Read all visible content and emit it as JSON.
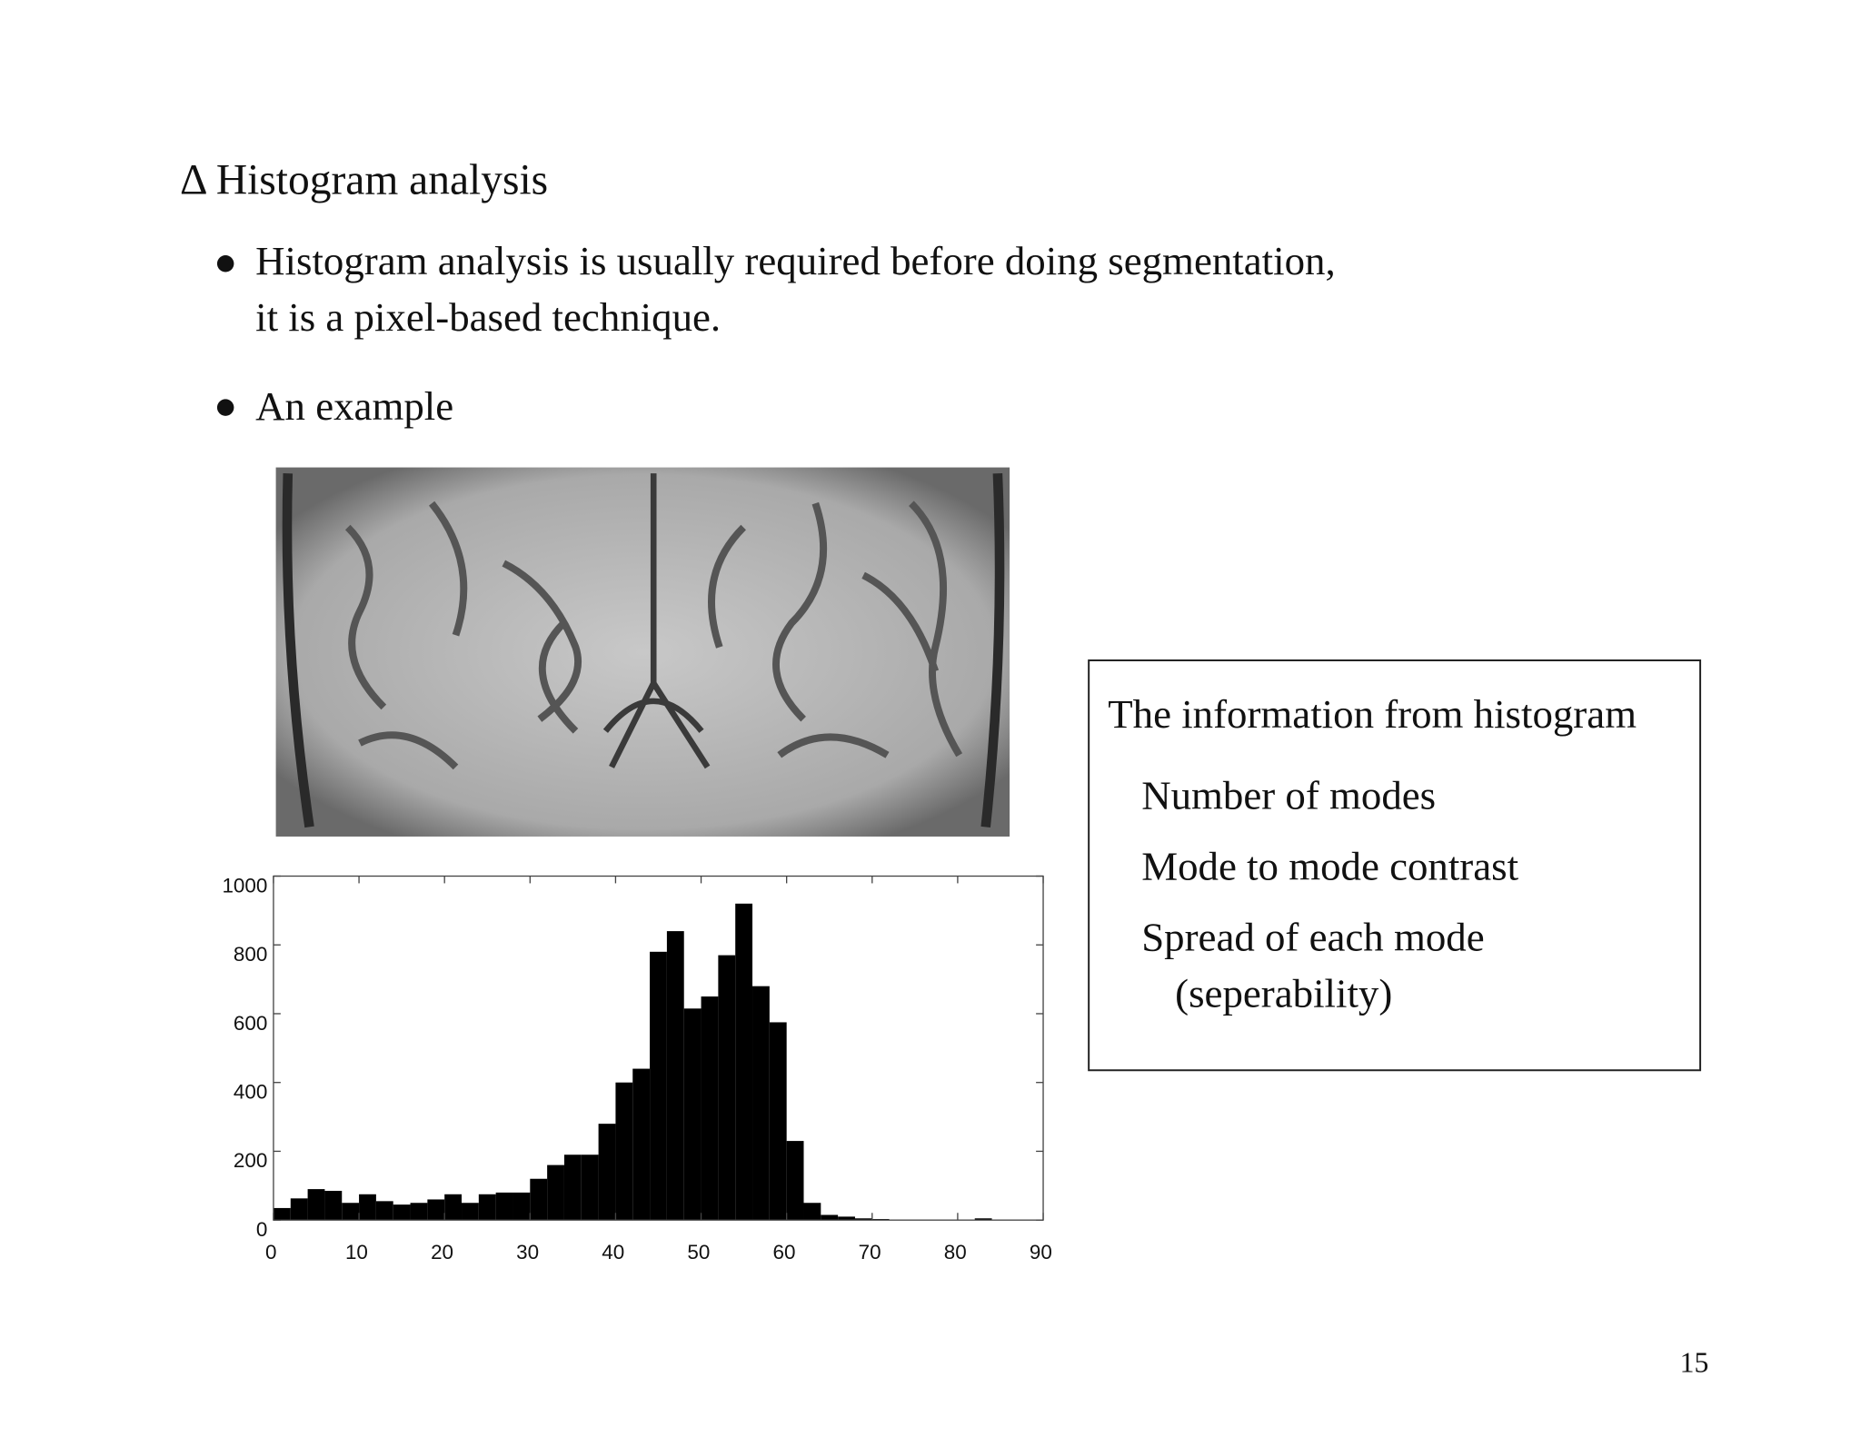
{
  "title": "Δ Histogram analysis",
  "bullets": [
    {
      "lines": [
        "Histogram analysis is usually required before doing segmentation,",
        "it is a pixel-based technique."
      ]
    },
    {
      "lines": [
        "An example"
      ]
    }
  ],
  "info_box": {
    "heading": "The information from histogram",
    "items": [
      "Number of modes",
      "Mode to mode contrast",
      "Spread of each mode"
    ],
    "note": "(seperability)"
  },
  "page_number": "15",
  "chart_data": {
    "type": "histogram",
    "bins": [
      0,
      2,
      4,
      6,
      8,
      10,
      12,
      14,
      16,
      18,
      20,
      22,
      24,
      26,
      28,
      30,
      32,
      34,
      36,
      38,
      40,
      42,
      44,
      46,
      48,
      50,
      52,
      54,
      56,
      58,
      60,
      62,
      64,
      66,
      68,
      70,
      72,
      74,
      76,
      78,
      80,
      82,
      84,
      86,
      88,
      90
    ],
    "values": [
      35,
      63,
      90,
      85,
      50,
      75,
      55,
      45,
      50,
      60,
      75,
      50,
      75,
      80,
      80,
      120,
      160,
      190,
      190,
      280,
      400,
      440,
      780,
      840,
      615,
      650,
      770,
      920,
      680,
      575,
      230,
      50,
      15,
      10,
      5,
      3,
      0,
      0,
      0,
      0,
      0,
      5,
      0,
      0,
      0
    ],
    "color": "#000000",
    "xlim": [
      0,
      90
    ],
    "ylim": [
      0,
      1000
    ],
    "xticks": [
      0,
      10,
      20,
      30,
      40,
      50,
      60,
      70,
      80,
      90
    ],
    "yticks": [
      0,
      200,
      400,
      600,
      800,
      1000
    ]
  }
}
